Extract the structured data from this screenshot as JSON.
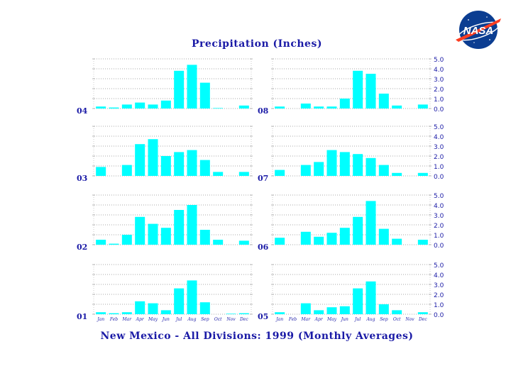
{
  "title": "Precipitation (Inches)",
  "caption": "New Mexico - All Divisions:  1999 (Monthly Averages)",
  "logo_text": "NASA",
  "colors": {
    "bar": "#00ffff",
    "text": "#1a1aa6",
    "logo_blue": "#0b3d91",
    "logo_red": "#fc3d21"
  },
  "months": [
    "Jan",
    "Feb",
    "Mar",
    "Apr",
    "May",
    "Jun",
    "Jul",
    "Aug",
    "Sep",
    "Oct",
    "Nov",
    "Dec"
  ],
  "y_ticks": [
    "0.0",
    "1.0",
    "2.0",
    "3.0",
    "4.0",
    "5.0"
  ],
  "chart_data": [
    {
      "type": "bar",
      "label": "04",
      "ylim": [
        0,
        5
      ],
      "values": [
        0.2,
        0.1,
        0.4,
        0.6,
        0.4,
        0.8,
        3.8,
        4.4,
        2.6,
        0.05,
        0.0,
        0.3
      ]
    },
    {
      "type": "bar",
      "label": "08",
      "ylim": [
        0,
        5
      ],
      "values": [
        0.2,
        0.0,
        0.5,
        0.2,
        0.2,
        1.0,
        3.8,
        3.5,
        1.5,
        0.3,
        0.0,
        0.4
      ]
    },
    {
      "type": "bar",
      "label": "03",
      "ylim": [
        0,
        5
      ],
      "values": [
        0.9,
        0.0,
        1.1,
        3.2,
        3.7,
        2.0,
        2.4,
        2.6,
        1.6,
        0.4,
        0.0,
        0.4
      ]
    },
    {
      "type": "bar",
      "label": "07",
      "ylim": [
        0,
        5
      ],
      "values": [
        0.6,
        0.0,
        1.1,
        1.4,
        2.6,
        2.4,
        2.2,
        1.8,
        1.1,
        0.3,
        0.0,
        0.3
      ]
    },
    {
      "type": "bar",
      "label": "02",
      "ylim": [
        0,
        5
      ],
      "values": [
        0.5,
        0.1,
        1.0,
        2.8,
        2.1,
        1.7,
        3.5,
        4.0,
        1.5,
        0.5,
        0.0,
        0.4
      ]
    },
    {
      "type": "bar",
      "label": "06",
      "ylim": [
        0,
        5
      ],
      "values": [
        0.7,
        0.0,
        1.3,
        0.8,
        1.2,
        1.7,
        2.8,
        4.4,
        1.6,
        0.6,
        0.0,
        0.5
      ]
    },
    {
      "type": "bar",
      "label": "01",
      "ylim": [
        0,
        5
      ],
      "values": [
        0.2,
        0.1,
        0.2,
        1.3,
        1.1,
        0.4,
        2.6,
        3.4,
        1.2,
        0.0,
        0.05,
        0.1
      ]
    },
    {
      "type": "bar",
      "label": "05",
      "ylim": [
        0,
        5
      ],
      "values": [
        0.2,
        0.0,
        1.1,
        0.4,
        0.7,
        0.8,
        2.6,
        3.3,
        1.0,
        0.4,
        0.0,
        0.2
      ]
    }
  ]
}
